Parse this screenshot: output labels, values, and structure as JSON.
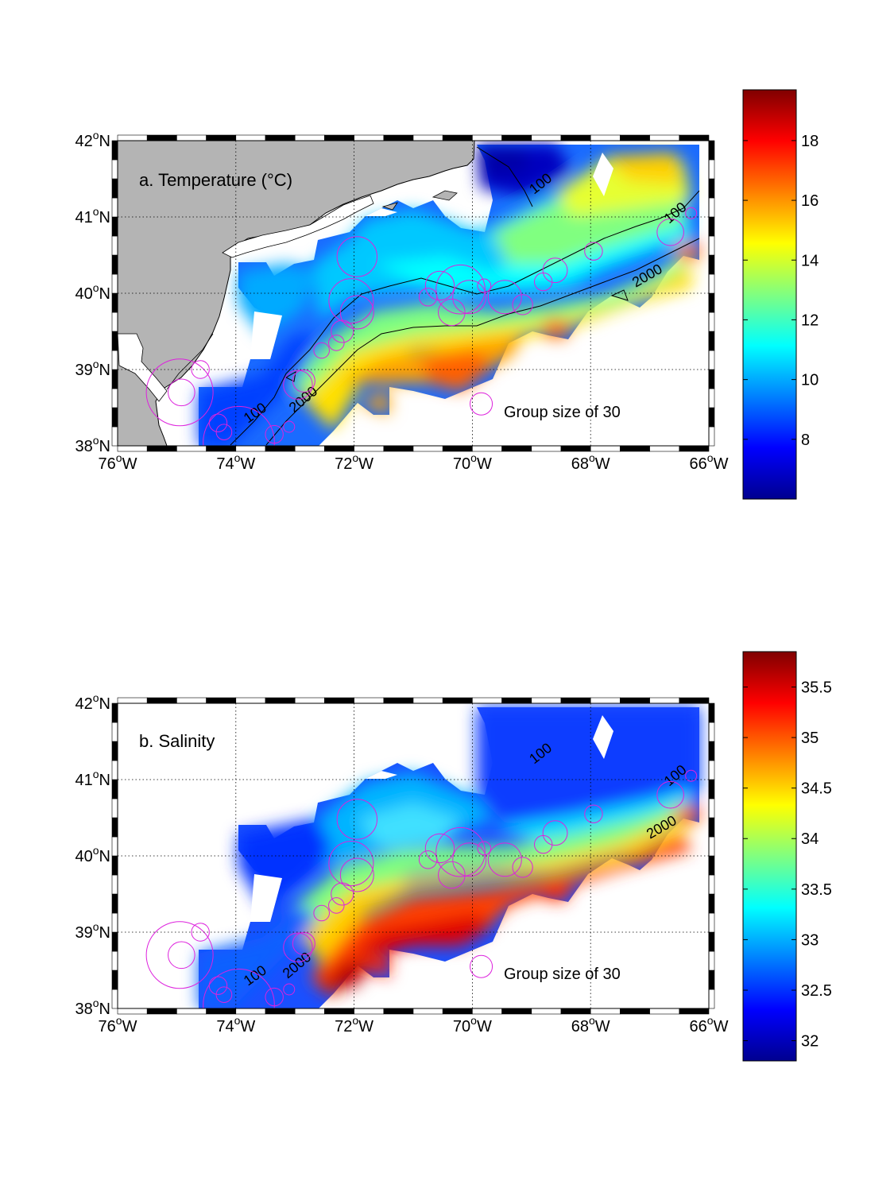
{
  "panels": [
    {
      "id": "temperature",
      "label": "a. Temperature (°C)",
      "legend_text": "Group size of 30",
      "contours": [
        "100",
        "2000",
        "100",
        "100",
        "2000",
        "2000"
      ],
      "colorbar": {
        "ticks": [
          "8",
          "10",
          "12",
          "14",
          "16",
          "18"
        ],
        "min": 6,
        "max": 19.7
      }
    },
    {
      "id": "salinity",
      "label": "b. Salinity",
      "legend_text": "Group size of 30",
      "contours": [
        "100",
        "2000",
        "100",
        "100",
        "2000",
        "2000"
      ],
      "colorbar": {
        "ticks": [
          "32",
          "32.5",
          "33",
          "33.5",
          "34",
          "34.5",
          "35",
          "35.5"
        ],
        "min": 31.8,
        "max": 35.85
      }
    }
  ],
  "axes": {
    "lon_ticks": [
      "76",
      "74",
      "72",
      "70",
      "68",
      "66"
    ],
    "lon_suffix": "W",
    "lat_ticks": [
      "38",
      "39",
      "40",
      "41",
      "42"
    ],
    "lat_suffix": "N",
    "degree_mark": "o",
    "lon_range": [
      -76,
      -66
    ],
    "lat_range": [
      38,
      42
    ]
  },
  "colors": {
    "land": "#b4b4b4",
    "markers": "#dd22dd",
    "colormap": "jet"
  },
  "markers": [
    {
      "lon": -74.95,
      "lat": 38.7,
      "size": 3
    },
    {
      "lon": -74.92,
      "lat": 38.7,
      "size": 1.2
    },
    {
      "lon": -74.6,
      "lat": 39.0,
      "size": 0.8
    },
    {
      "lon": -74.3,
      "lat": 38.3,
      "size": 0.8
    },
    {
      "lon": -74.2,
      "lat": 38.18,
      "size": 0.7
    },
    {
      "lon": -73.95,
      "lat": 38.05,
      "size": 3.2
    },
    {
      "lon": -73.35,
      "lat": 38.15,
      "size": 0.8
    },
    {
      "lon": -73.1,
      "lat": 38.25,
      "size": 0.5
    },
    {
      "lon": -72.95,
      "lat": 38.8,
      "size": 1.3
    },
    {
      "lon": -72.85,
      "lat": 38.85,
      "size": 1
    },
    {
      "lon": -72.55,
      "lat": 39.25,
      "size": 0.7
    },
    {
      "lon": -72.3,
      "lat": 39.35,
      "size": 0.7
    },
    {
      "lon": -72.2,
      "lat": 39.5,
      "size": 1
    },
    {
      "lon": -72.05,
      "lat": 39.9,
      "size": 2
    },
    {
      "lon": -71.95,
      "lat": 39.75,
      "size": 1.5
    },
    {
      "lon": -71.95,
      "lat": 40.48,
      "size": 1.8
    },
    {
      "lon": -70.75,
      "lat": 39.95,
      "size": 0.8
    },
    {
      "lon": -70.55,
      "lat": 40.1,
      "size": 1.3
    },
    {
      "lon": -70.35,
      "lat": 39.75,
      "size": 1.2
    },
    {
      "lon": -70.2,
      "lat": 40.05,
      "size": 2.2
    },
    {
      "lon": -70.05,
      "lat": 39.95,
      "size": 1.5
    },
    {
      "lon": -69.8,
      "lat": 40.1,
      "size": 0.6
    },
    {
      "lon": -69.45,
      "lat": 39.95,
      "size": 1.5
    },
    {
      "lon": -69.15,
      "lat": 39.85,
      "size": 0.9
    },
    {
      "lon": -68.8,
      "lat": 40.15,
      "size": 0.8
    },
    {
      "lon": -68.6,
      "lat": 40.3,
      "size": 1.1
    },
    {
      "lon": -67.95,
      "lat": 40.55,
      "size": 0.8
    },
    {
      "lon": -66.65,
      "lat": 40.8,
      "size": 1.2
    },
    {
      "lon": -66.3,
      "lat": 41.05,
      "size": 0.5
    }
  ],
  "legend_marker": {
    "lon": -69.85,
    "lat": 38.55,
    "size": 1
  }
}
